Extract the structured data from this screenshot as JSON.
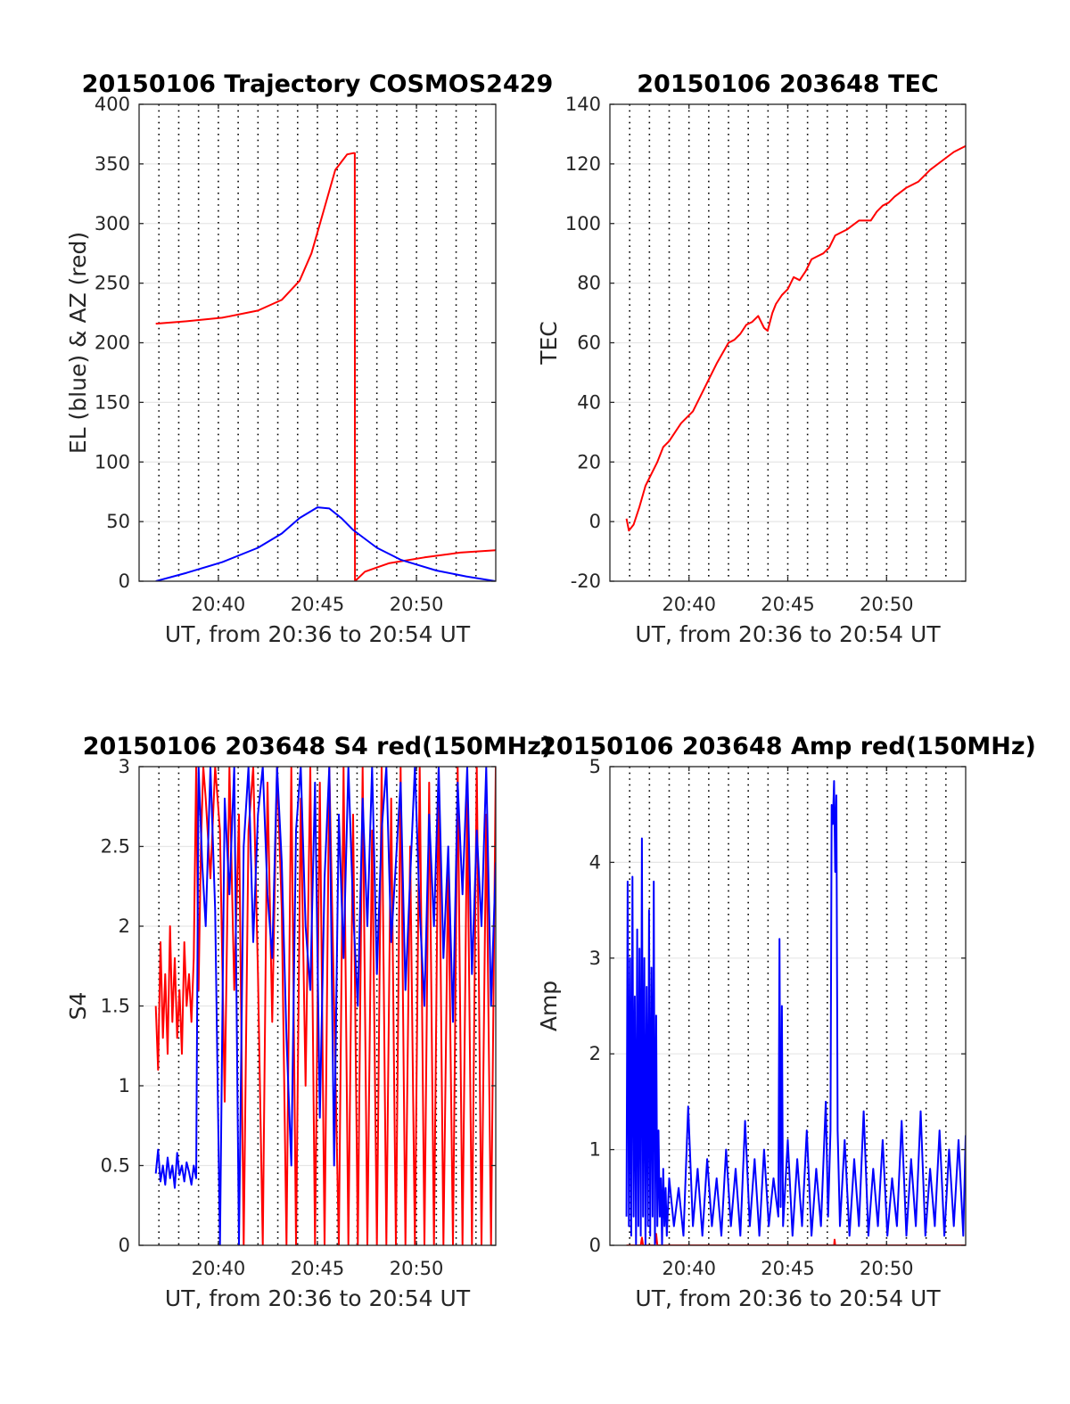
{
  "chart_data": [
    {
      "type": "line",
      "title": "20150106 Trajectory COSMOS2429",
      "xlabel": "UT, from 20:36 to 20:54 UT",
      "ylabel": "EL (blue) & AZ (red)",
      "xlim": [
        20.6,
        20.9
      ],
      "ylim": [
        0,
        400
      ],
      "xticks": [
        {
          "v": 20.6667,
          "label": "20:40"
        },
        {
          "v": 20.75,
          "label": "20:45"
        },
        {
          "v": 20.8333,
          "label": "20:50"
        }
      ],
      "yticks": [
        0,
        50,
        100,
        150,
        200,
        250,
        300,
        350,
        400
      ],
      "grid": true,
      "series": [
        {
          "color": "#ff0000",
          "x": [
            20.614,
            20.64,
            20.67,
            20.7,
            20.72,
            20.735,
            20.745,
            20.755,
            20.765,
            20.775,
            20.78,
            20.7814,
            20.7816,
            20.79,
            20.81,
            20.84,
            20.87,
            20.9
          ],
          "y": [
            216,
            218,
            221,
            227,
            236,
            252,
            275,
            310,
            345,
            358,
            359,
            359,
            0,
            8,
            15,
            20,
            24,
            26
          ]
        },
        {
          "color": "#0000ff",
          "x": [
            20.614,
            20.64,
            20.67,
            20.7,
            20.72,
            20.735,
            20.75,
            20.76,
            20.77,
            20.78,
            20.8,
            20.82,
            20.85,
            20.875,
            20.9
          ],
          "y": [
            0,
            7,
            16,
            28,
            40,
            53,
            62,
            61,
            53,
            43,
            28,
            18,
            9,
            4,
            0
          ]
        }
      ]
    },
    {
      "type": "line",
      "title": "20150106 203648 TEC",
      "xlabel": "UT, from 20:36 to 20:54 UT",
      "ylabel": "TEC",
      "xlim": [
        20.6,
        20.9
      ],
      "ylim": [
        -20,
        140
      ],
      "xticks": [
        {
          "v": 20.6667,
          "label": "20:40"
        },
        {
          "v": 20.75,
          "label": "20:45"
        },
        {
          "v": 20.8333,
          "label": "20:50"
        }
      ],
      "yticks": [
        -20,
        0,
        20,
        40,
        60,
        80,
        100,
        120,
        140
      ],
      "grid": true,
      "series": [
        {
          "color": "#ff0000",
          "x": [
            20.614,
            20.616,
            20.62,
            20.625,
            20.63,
            20.635,
            20.64,
            20.645,
            20.65,
            20.66,
            20.67,
            20.68,
            20.69,
            20.7,
            20.705,
            20.71,
            20.715,
            20.72,
            20.725,
            20.73,
            20.733,
            20.737,
            20.74,
            20.745,
            20.75,
            20.755,
            20.76,
            20.765,
            20.77,
            20.775,
            20.78,
            20.785,
            20.79,
            20.8,
            20.81,
            20.82,
            20.825,
            20.83,
            20.835,
            20.84,
            20.85,
            20.86,
            20.87,
            20.88,
            20.89,
            20.9
          ],
          "y": [
            1,
            -3,
            -1,
            5,
            12,
            16,
            20,
            25,
            27,
            33,
            37,
            45,
            53,
            60,
            61,
            63,
            66,
            67,
            69,
            65,
            64,
            70,
            73,
            76,
            78,
            82,
            81,
            84,
            88,
            89,
            90,
            92,
            96,
            98,
            101,
            101,
            104,
            106,
            107,
            109,
            112,
            114,
            118,
            121,
            124,
            126
          ]
        }
      ]
    },
    {
      "type": "line",
      "title": "20150106 203648 S4 red(150MHz)",
      "xlabel": "UT, from 20:36 to 20:54 UT",
      "ylabel": "S4",
      "xlim": [
        20.6,
        20.9
      ],
      "ylim": [
        0,
        3
      ],
      "xticks": [
        {
          "v": 20.6667,
          "label": "20:40"
        },
        {
          "v": 20.75,
          "label": "20:45"
        },
        {
          "v": 20.8333,
          "label": "20:50"
        }
      ],
      "yticks": [
        0,
        0.5,
        1,
        1.5,
        2,
        2.5,
        3
      ],
      "grid": true,
      "series": [
        {
          "color": "#ff0000",
          "x": [
            20.614,
            20.616,
            20.618,
            20.62,
            20.622,
            20.624,
            20.626,
            20.628,
            20.63,
            20.632,
            20.634,
            20.636,
            20.638,
            20.64,
            20.642,
            20.644,
            20.646,
            20.648,
            20.65,
            20.652,
            20.654,
            20.656,
            20.66,
            20.664,
            20.668,
            20.672,
            20.676,
            20.68,
            20.684,
            20.688,
            20.692,
            20.696,
            20.7,
            20.704,
            20.708,
            20.712,
            20.716,
            20.72,
            20.724,
            20.728,
            20.732,
            20.736,
            20.74,
            20.744,
            20.748,
            20.752,
            20.756,
            20.76,
            20.764,
            20.768,
            20.772,
            20.776,
            20.78,
            20.784,
            20.788,
            20.792,
            20.796,
            20.8,
            20.804,
            20.808,
            20.812,
            20.816,
            20.82,
            20.824,
            20.828,
            20.832,
            20.836,
            20.84,
            20.844,
            20.848,
            20.852,
            20.856,
            20.86,
            20.864,
            20.868,
            20.872,
            20.876,
            20.88,
            20.884,
            20.888,
            20.892,
            20.896,
            20.9
          ],
          "y": [
            1.5,
            1.1,
            1.9,
            1.3,
            1.7,
            1.2,
            2.0,
            1.4,
            1.8,
            1.3,
            1.6,
            1.2,
            1.9,
            1.5,
            1.7,
            1.4,
            1.8,
            3.0,
            1.6,
            2.5,
            3.0,
            2.8,
            2.3,
            3.0,
            2.6,
            0.9,
            3.0,
            1.6,
            2.7,
            0.0,
            2.6,
            3.0,
            1.7,
            0.0,
            2.9,
            1.4,
            3.0,
            2.1,
            0.0,
            3.0,
            0.0,
            2.8,
            1.0,
            3.0,
            0.0,
            2.9,
            0.0,
            3.0,
            1.5,
            0.0,
            3.0,
            0.0,
            2.7,
            0.0,
            3.0,
            0.0,
            2.6,
            0.0,
            3.0,
            0.0,
            2.8,
            0.0,
            3.0,
            0.0,
            2.5,
            0.0,
            3.0,
            0.0,
            2.9,
            0.0,
            3.0,
            0.0,
            2.4,
            0.0,
            3.0,
            0.0,
            2.8,
            0.0,
            3.0,
            0.0,
            2.7,
            0.0,
            3.0
          ]
        },
        {
          "color": "#0000ff",
          "x": [
            20.614,
            20.616,
            20.618,
            20.62,
            20.622,
            20.624,
            20.626,
            20.628,
            20.63,
            20.632,
            20.634,
            20.636,
            20.638,
            20.64,
            20.642,
            20.644,
            20.646,
            20.648,
            20.65,
            20.653,
            20.656,
            20.66,
            20.664,
            20.668,
            20.672,
            20.676,
            20.68,
            20.684,
            20.688,
            20.692,
            20.696,
            20.7,
            20.704,
            20.708,
            20.712,
            20.716,
            20.72,
            20.724,
            20.728,
            20.732,
            20.736,
            20.74,
            20.744,
            20.748,
            20.752,
            20.756,
            20.76,
            20.764,
            20.768,
            20.772,
            20.776,
            20.78,
            20.784,
            20.788,
            20.792,
            20.796,
            20.8,
            20.804,
            20.808,
            20.812,
            20.816,
            20.82,
            20.824,
            20.828,
            20.832,
            20.836,
            20.84,
            20.844,
            20.848,
            20.852,
            20.856,
            20.86,
            20.864,
            20.868,
            20.872,
            20.876,
            20.88,
            20.884,
            20.888,
            20.892,
            20.896,
            20.9
          ],
          "y": [
            0.45,
            0.6,
            0.4,
            0.5,
            0.38,
            0.55,
            0.42,
            0.5,
            0.36,
            0.58,
            0.44,
            0.5,
            0.4,
            0.52,
            0.46,
            0.38,
            0.5,
            0.42,
            3.0,
            2.4,
            2.0,
            3.0,
            2.1,
            0.0,
            2.8,
            2.2,
            3.0,
            0.0,
            2.5,
            3.0,
            1.9,
            2.7,
            3.0,
            2.2,
            1.8,
            3.0,
            2.4,
            1.3,
            0.5,
            2.6,
            3.0,
            2.0,
            1.6,
            2.9,
            0.8,
            2.3,
            3.0,
            0.5,
            2.7,
            1.8,
            3.0,
            2.1,
            1.5,
            2.8,
            2.0,
            3.0,
            1.7,
            2.6,
            3.0,
            1.9,
            2.4,
            2.9,
            1.6,
            2.3,
            3.0,
            2.1,
            1.5,
            2.7,
            2.0,
            3.0,
            1.8,
            2.5,
            1.4,
            2.9,
            2.2,
            3.0,
            1.7,
            2.6,
            2.0,
            3.0,
            1.5,
            2.4
          ]
        }
      ]
    },
    {
      "type": "line",
      "title": "20150106 203648 Amp red(150MHz)",
      "xlabel": "UT, from 20:36 to 20:54 UT",
      "ylabel": "Amp",
      "xlim": [
        20.6,
        20.9
      ],
      "ylim": [
        0,
        5
      ],
      "xticks": [
        {
          "v": 20.6667,
          "label": "20:40"
        },
        {
          "v": 20.75,
          "label": "20:45"
        },
        {
          "v": 20.8333,
          "label": "20:50"
        }
      ],
      "yticks": [
        0,
        1,
        2,
        3,
        4,
        5
      ],
      "grid": true,
      "series": [
        {
          "color": "#ff0000",
          "x": [
            20.614,
            20.626,
            20.627,
            20.628,
            20.638,
            20.639,
            20.64,
            20.789,
            20.7895,
            20.79,
            20.9
          ],
          "y": [
            0,
            0,
            0.08,
            0,
            0,
            0.12,
            0,
            0,
            0.06,
            0,
            0
          ]
        },
        {
          "color": "#0000ff",
          "x": [
            20.614,
            20.615,
            20.616,
            20.617,
            20.618,
            20.619,
            20.62,
            20.621,
            20.622,
            20.623,
            20.624,
            20.625,
            20.626,
            20.627,
            20.628,
            20.629,
            20.63,
            20.631,
            20.632,
            20.633,
            20.634,
            20.635,
            20.636,
            20.637,
            20.638,
            20.639,
            20.64,
            20.641,
            20.642,
            20.643,
            20.644,
            20.645,
            20.646,
            20.647,
            20.648,
            20.65,
            20.654,
            20.658,
            20.662,
            20.666,
            20.67,
            20.674,
            20.678,
            20.682,
            20.686,
            20.69,
            20.694,
            20.698,
            20.702,
            20.706,
            20.71,
            20.714,
            20.718,
            20.722,
            20.726,
            20.73,
            20.734,
            20.738,
            20.742,
            20.743,
            20.744,
            20.745,
            20.746,
            20.75,
            20.754,
            20.758,
            20.762,
            20.766,
            20.77,
            20.774,
            20.778,
            20.782,
            20.784,
            20.786,
            20.787,
            20.788,
            20.789,
            20.79,
            20.791,
            20.792,
            20.794,
            20.798,
            20.802,
            20.806,
            20.81,
            20.814,
            20.818,
            20.822,
            20.826,
            20.83,
            20.834,
            20.838,
            20.842,
            20.846,
            20.85,
            20.854,
            20.858,
            20.862,
            20.866,
            20.87,
            20.874,
            20.878,
            20.882,
            20.886,
            20.89,
            20.894,
            20.898,
            20.9
          ],
          "y": [
            0.3,
            3.8,
            0.2,
            3.0,
            0.1,
            3.85,
            0.3,
            2.6,
            0.0,
            3.3,
            0.2,
            3.1,
            0.1,
            4.25,
            0.3,
            3.0,
            0.0,
            2.7,
            0.2,
            3.5,
            0.1,
            2.9,
            0.3,
            3.8,
            0.0,
            2.4,
            0.2,
            1.2,
            0.3,
            0.7,
            0.0,
            0.8,
            0.2,
            0.6,
            0.1,
            0.7,
            0.2,
            0.6,
            0.1,
            1.45,
            0.2,
            0.8,
            0.1,
            0.9,
            0.2,
            0.7,
            0.1,
            1.0,
            0.2,
            0.8,
            0.1,
            1.3,
            0.2,
            0.9,
            0.1,
            1.0,
            0.2,
            0.7,
            0.3,
            3.2,
            0.4,
            2.5,
            0.2,
            1.1,
            0.1,
            0.9,
            0.2,
            1.2,
            0.1,
            0.8,
            0.2,
            1.5,
            0.3,
            1.2,
            4.6,
            4.4,
            4.85,
            3.9,
            4.7,
            1.2,
            0.2,
            1.1,
            0.1,
            0.9,
            0.2,
            1.4,
            0.1,
            0.8,
            0.2,
            1.1,
            0.1,
            0.7,
            0.2,
            1.3,
            0.1,
            0.9,
            0.2,
            1.4,
            0.1,
            0.8,
            0.2,
            1.2,
            0.1,
            1.0,
            0.2,
            1.1,
            0.1,
            1.15
          ]
        }
      ]
    }
  ]
}
